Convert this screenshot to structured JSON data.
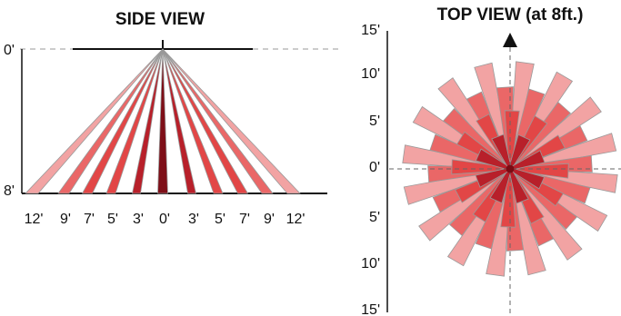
{
  "side_view": {
    "title": "SIDE VIEW",
    "depth_labels": [
      "0'",
      "8'"
    ],
    "distance_labels": [
      "12'",
      "9'",
      "7'",
      "5'",
      "3'",
      "0'",
      "3'",
      "5'",
      "7'",
      "9'",
      "12'"
    ],
    "distances_ft": [
      -12,
      -9,
      -7,
      -5,
      -3,
      0,
      3,
      5,
      7,
      9,
      12
    ]
  },
  "top_view": {
    "title": "TOP VIEW (at 8ft.)",
    "y_labels": [
      "15'",
      "10'",
      "5'",
      "0'",
      "5'",
      "10'",
      "15'"
    ],
    "axis_extent_ft": [
      -15,
      15
    ]
  },
  "colors": {
    "light": "#f2a3a3",
    "medium": "#ea6767",
    "strong": "#e24646",
    "deep": "#b8202a",
    "darkest": "#7e0f18",
    "center_dot": "#7a0c14",
    "outline": "#999999",
    "line": "#111111"
  }
}
